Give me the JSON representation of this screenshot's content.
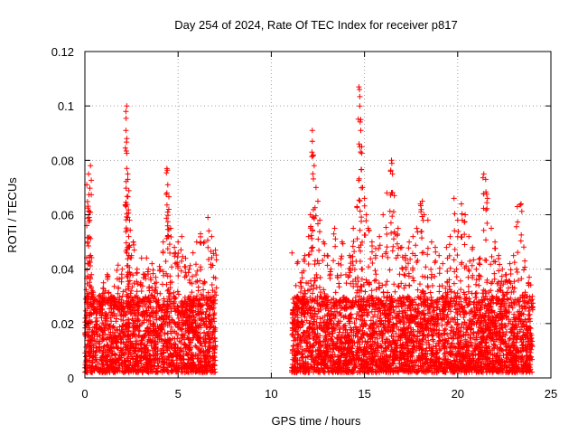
{
  "chart_data": {
    "type": "scatter",
    "title": "Day 254 of 2024, Rate Of TEC Index for receiver p817",
    "xlabel": "GPS time / hours",
    "ylabel": "ROTI / TECUs",
    "xlim": [
      0,
      25
    ],
    "ylim": [
      0,
      0.12
    ],
    "xticks": [
      0,
      5,
      10,
      15,
      20,
      25
    ],
    "xtick_labels": [
      "0",
      "5",
      "10",
      "15",
      "20",
      "25"
    ],
    "yticks": [
      0,
      0.02,
      0.04,
      0.06,
      0.08,
      0.1,
      0.12
    ],
    "ytick_labels": [
      "0",
      "0.02",
      "0.04",
      "0.06",
      "0.08",
      "0.1",
      "0.12"
    ],
    "grid": true,
    "marker": "+",
    "color": "#ff0000",
    "series": [
      {
        "name": "ROTI",
        "x": [
          0.1,
          0.1,
          0.15,
          0.2,
          0.25,
          0.3,
          0.3,
          0.35,
          0.4,
          0.5,
          0.6,
          0.8,
          1.0,
          1.2,
          1.4,
          1.6,
          1.8,
          2.0,
          2.2,
          2.2,
          2.25,
          2.25,
          2.3,
          2.3,
          2.3,
          2.35,
          2.4,
          2.4,
          2.5,
          2.6,
          2.8,
          3.0,
          3.2,
          3.4,
          3.6,
          3.8,
          4.0,
          4.2,
          4.4,
          4.4,
          4.45,
          4.5,
          4.6,
          4.8,
          5.0,
          5.2,
          5.4,
          5.6,
          5.8,
          6.0,
          6.2,
          6.4,
          6.6,
          6.8,
          7.0,
          11.2,
          11.4,
          11.6,
          11.8,
          12.0,
          12.1,
          12.2,
          12.2,
          12.25,
          12.3,
          12.4,
          12.5,
          12.6,
          12.8,
          13.0,
          13.2,
          13.4,
          13.6,
          13.8,
          14.0,
          14.2,
          14.4,
          14.6,
          14.7,
          14.75,
          14.8,
          14.8,
          14.85,
          14.9,
          15.0,
          15.1,
          15.2,
          15.4,
          15.6,
          15.8,
          16.0,
          16.2,
          16.4,
          16.45,
          16.5,
          16.6,
          16.8,
          17.0,
          17.2,
          17.4,
          17.6,
          17.8,
          18.0,
          18.1,
          18.2,
          18.4,
          18.6,
          18.8,
          19.0,
          19.2,
          19.4,
          19.6,
          19.8,
          20.0,
          20.2,
          20.4,
          20.6,
          20.8,
          21.0,
          21.2,
          21.4,
          21.5,
          21.6,
          21.8,
          22.0,
          22.2,
          22.4,
          22.6,
          22.8,
          23.0,
          23.2,
          23.4,
          23.6,
          23.8,
          24.0
        ],
        "y": [
          0.071,
          0.056,
          0.05,
          0.075,
          0.061,
          0.078,
          0.045,
          0.038,
          0.032,
          0.025,
          0.022,
          0.028,
          0.035,
          0.038,
          0.03,
          0.027,
          0.033,
          0.04,
          0.098,
          0.091,
          0.1,
          0.088,
          0.073,
          0.075,
          0.059,
          0.052,
          0.048,
          0.058,
          0.045,
          0.05,
          0.04,
          0.035,
          0.038,
          0.04,
          0.042,
          0.037,
          0.041,
          0.05,
          0.077,
          0.068,
          0.071,
          0.062,
          0.055,
          0.048,
          0.05,
          0.052,
          0.044,
          0.04,
          0.046,
          0.05,
          0.053,
          0.05,
          0.059,
          0.052,
          0.047,
          0.02,
          0.03,
          0.035,
          0.045,
          0.052,
          0.06,
          0.087,
          0.091,
          0.082,
          0.078,
          0.07,
          0.065,
          0.058,
          0.05,
          0.045,
          0.04,
          0.055,
          0.042,
          0.05,
          0.038,
          0.045,
          0.055,
          0.063,
          0.107,
          0.1,
          0.095,
          0.091,
          0.085,
          0.07,
          0.066,
          0.06,
          0.055,
          0.05,
          0.045,
          0.052,
          0.06,
          0.068,
          0.076,
          0.08,
          0.075,
          0.067,
          0.055,
          0.048,
          0.045,
          0.05,
          0.052,
          0.055,
          0.064,
          0.065,
          0.06,
          0.058,
          0.05,
          0.048,
          0.045,
          0.042,
          0.048,
          0.052,
          0.066,
          0.058,
          0.064,
          0.06,
          0.052,
          0.048,
          0.04,
          0.044,
          0.075,
          0.073,
          0.066,
          0.055,
          0.05,
          0.045,
          0.04,
          0.038,
          0.042,
          0.045,
          0.063,
          0.064,
          0.043,
          0.035,
          0.03
        ],
        "noise_floor": {
          "segments": [
            [
              0,
              7.0
            ],
            [
              11.1,
              24.0
            ]
          ],
          "y_range": [
            0.002,
            0.03
          ],
          "description": "dense band of low ROTI points"
        }
      }
    ]
  }
}
